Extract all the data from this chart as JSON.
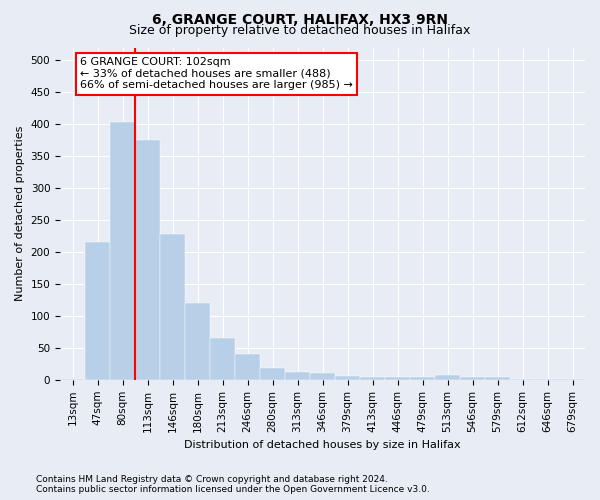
{
  "title1": "6, GRANGE COURT, HALIFAX, HX3 9RN",
  "title2": "Size of property relative to detached houses in Halifax",
  "xlabel": "Distribution of detached houses by size in Halifax",
  "ylabel": "Number of detached properties",
  "categories": [
    "13sqm",
    "47sqm",
    "80sqm",
    "113sqm",
    "146sqm",
    "180sqm",
    "213sqm",
    "246sqm",
    "280sqm",
    "313sqm",
    "346sqm",
    "379sqm",
    "413sqm",
    "446sqm",
    "479sqm",
    "513sqm",
    "546sqm",
    "579sqm",
    "612sqm",
    "646sqm",
    "679sqm"
  ],
  "values": [
    2,
    215,
    403,
    375,
    228,
    120,
    65,
    40,
    18,
    13,
    10,
    6,
    5,
    4,
    4,
    8,
    4,
    4,
    2,
    2,
    2
  ],
  "bar_color": "#b8cfe8",
  "bar_edge_color": "#b8cfe8",
  "red_line_bin": 2,
  "annotation_box_text": "6 GRANGE COURT: 102sqm\n← 33% of detached houses are smaller (488)\n66% of semi-detached houses are larger (985) →",
  "ylim": [
    0,
    520
  ],
  "yticks": [
    0,
    50,
    100,
    150,
    200,
    250,
    300,
    350,
    400,
    450,
    500
  ],
  "background_color": "#e8edf5",
  "plot_bg_color": "#e8edf5",
  "grid_color": "#ffffff",
  "footnote1": "Contains HM Land Registry data © Crown copyright and database right 2024.",
  "footnote2": "Contains public sector information licensed under the Open Government Licence v3.0.",
  "title1_fontsize": 10,
  "title2_fontsize": 9,
  "axis_label_fontsize": 8,
  "tick_fontsize": 7.5,
  "annot_fontsize": 8,
  "footnote_fontsize": 6.5
}
